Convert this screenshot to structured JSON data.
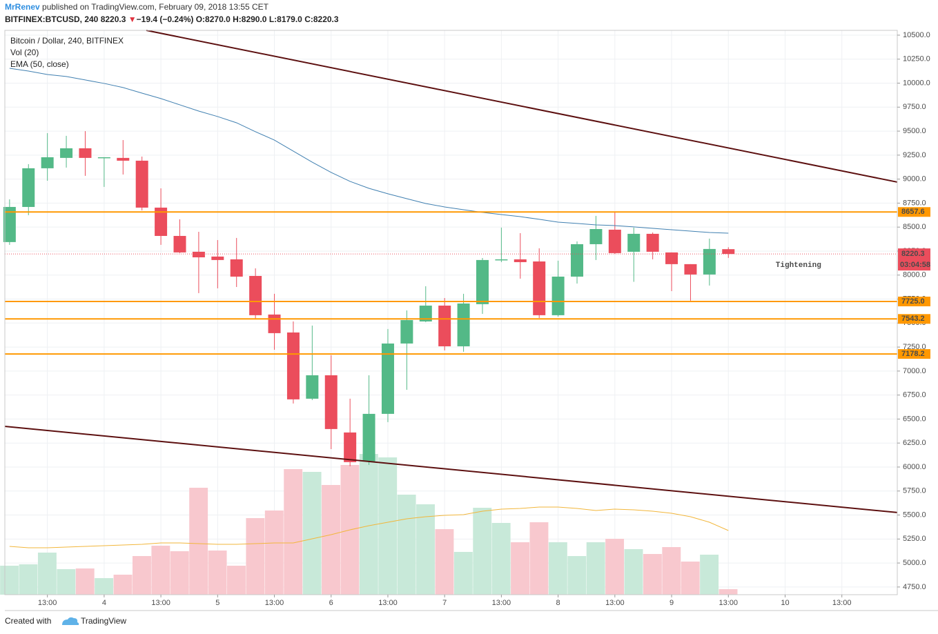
{
  "header": {
    "author": "MrRenev",
    "published": "published on TradingView.com, February 09, 2018 13:55 CET",
    "symbol": "BITFINEX:BTCUSD, 240",
    "price": "8220.3",
    "arrow": "▼",
    "change": "−19.4 (−0.24%)",
    "o": "O:8270.0",
    "h": "H:8290.0",
    "l": "L:8179.0",
    "c": "C:8220.3"
  },
  "footer": {
    "created": "Created with",
    "brand": "TradingView"
  },
  "chart_data": {
    "type": "candlestick",
    "legend": [
      "Bitcoin / Dollar, 240, BITFINEX",
      "Vol (20)",
      "EMA (50, close)"
    ],
    "up_color": "#53b987",
    "down_color": "#eb4d5c",
    "up_volume_color": "#c8e9d9",
    "down_volume_color": "#f8c8ce",
    "ema_color": "#3f7fb0",
    "vol_ma_color": "#f2b63a",
    "level_color": "#ff9800",
    "trend_color": "#5c0f0f",
    "open": [
      8344,
      8710,
      9113,
      9221,
      9321,
      9220,
      9221,
      9192,
      8703,
      8408,
      8243,
      8193,
      8164,
      7991,
      7589,
      7402,
      6712,
      6956,
      6360,
      6058,
      6554,
      7287,
      7517,
      7682,
      7258,
      7697,
      8157,
      8164,
      8142,
      7582,
      7984,
      8322,
      8473,
      8243,
      8430,
      8236,
      8114,
      8006,
      8270
    ],
    "high": [
      8789,
      9156,
      9479,
      9451,
      9500,
      9228,
      9407,
      9235,
      8904,
      8581,
      8451,
      8365,
      8387,
      8070,
      7805,
      7517,
      7474,
      7165,
      6712,
      6956,
      7438,
      7632,
      7884,
      7761,
      7805,
      8178,
      8495,
      8437,
      8279,
      8150,
      8351,
      8617,
      8653,
      8495,
      8444,
      8236,
      8114,
      8380,
      8290
    ],
    "low": [
      8315,
      8624,
      8983,
      9120,
      9034,
      8919,
      9048,
      8674,
      8315,
      8229,
      7812,
      7862,
      7876,
      7538,
      7222,
      6662,
      6698,
      6187,
      6008,
      6022,
      6468,
      6805,
      7510,
      7215,
      7201,
      7596,
      8135,
      7963,
      7553,
      7567,
      7912,
      8157,
      8221,
      7930,
      8164,
      7833,
      7733,
      7891,
      8179
    ],
    "close": [
      8710,
      9113,
      9228,
      9321,
      9221,
      9228,
      9192,
      8703,
      8408,
      8236,
      8185,
      8157,
      7984,
      7582,
      7395,
      6705,
      6956,
      6396,
      6051,
      6554,
      7287,
      7531,
      7682,
      7258,
      7704,
      8157,
      8164,
      8135,
      7582,
      7984,
      8322,
      8480,
      8229,
      8430,
      8243,
      8114,
      8006,
      8272,
      8220.3
    ],
    "volume": [
      42,
      44,
      61,
      37,
      38,
      24,
      29,
      56,
      71,
      63,
      155,
      64,
      42,
      111,
      122,
      182,
      178,
      159,
      188,
      204,
      199,
      145,
      131,
      95,
      62,
      126,
      104,
      76,
      105,
      76,
      56,
      76,
      81,
      66,
      59,
      69,
      48,
      58,
      8
    ],
    "vol_ma": [
      70,
      68,
      68,
      69,
      70,
      71,
      72,
      73,
      75,
      75,
      74,
      73,
      73,
      74,
      75,
      75,
      81,
      87,
      94,
      100,
      105,
      110,
      113,
      115,
      116,
      121,
      124,
      125,
      127,
      127,
      125,
      122,
      124,
      123,
      121,
      118,
      113,
      105,
      93
    ],
    "ema": [
      10155,
      10126,
      10090,
      10069,
      10033,
      9997,
      9954,
      9896,
      9839,
      9774,
      9709,
      9652,
      9587,
      9494,
      9407,
      9292,
      9177,
      9070,
      8976,
      8904,
      8847,
      8796,
      8746,
      8710,
      8681,
      8653,
      8631,
      8609,
      8581,
      8552,
      8538,
      8523,
      8516,
      8502,
      8487,
      8473,
      8458,
      8444,
      8437
    ],
    "levels": [
      {
        "value": 8657.6,
        "label": "8657.6"
      },
      {
        "value": 7725.0,
        "label": "7725.0"
      },
      {
        "value": 7543.2,
        "label": "7543.2"
      },
      {
        "value": 7178.2,
        "label": "7178.2"
      }
    ],
    "trendlines": [
      {
        "x": [
          7.23,
          46.93
        ],
        "y": [
          10550,
          8969
        ]
      },
      {
        "x": [
          -0.26,
          46.93
        ],
        "y": [
          6424,
          5526
        ]
      }
    ],
    "last_price": {
      "value": 8220.3,
      "label": "8220.3"
    },
    "countdown": "03:04:58",
    "annotation": {
      "text": "Tightening",
      "x": 40.5,
      "y": 8106
    },
    "xlim": [
      -0.25,
      46.93
    ],
    "ylim": [
      4670,
      10550
    ],
    "xticks": [
      {
        "value": 2,
        "label": "13:00"
      },
      {
        "value": 5,
        "label": "4"
      },
      {
        "value": 8,
        "label": "13:00"
      },
      {
        "value": 11,
        "label": "5"
      },
      {
        "value": 14,
        "label": "13:00"
      },
      {
        "value": 17,
        "label": "6"
      },
      {
        "value": 20,
        "label": "13:00"
      },
      {
        "value": 23,
        "label": "7"
      },
      {
        "value": 26,
        "label": "13:00"
      },
      {
        "value": 29,
        "label": "8"
      },
      {
        "value": 32,
        "label": "13:00"
      },
      {
        "value": 35,
        "label": "9"
      },
      {
        "value": 38,
        "label": "13:00"
      },
      {
        "value": 41,
        "label": "10"
      },
      {
        "value": 44,
        "label": "13:00"
      }
    ],
    "yticks": [
      {
        "value": 4750,
        "label": "4750.0"
      },
      {
        "value": 5000,
        "label": "5000.0"
      },
      {
        "value": 5250,
        "label": "5250.0"
      },
      {
        "value": 5500,
        "label": "5500.0"
      },
      {
        "value": 5750,
        "label": "5750.0"
      },
      {
        "value": 6000,
        "label": "6000.0"
      },
      {
        "value": 6250,
        "label": "6250.0"
      },
      {
        "value": 6500,
        "label": "6500.0"
      },
      {
        "value": 6750,
        "label": "6750.0"
      },
      {
        "value": 7000,
        "label": "7000.0"
      },
      {
        "value": 7250,
        "label": "7250.0"
      },
      {
        "value": 7500,
        "label": "7500.0"
      },
      {
        "value": 7750,
        "label": "7750.0"
      },
      {
        "value": 8000,
        "label": "8000.0"
      },
      {
        "value": 8250,
        "label": "8250.0"
      },
      {
        "value": 8500,
        "label": "8500.0"
      },
      {
        "value": 8750,
        "label": "8750.0"
      },
      {
        "value": 9000,
        "label": "9000.0"
      },
      {
        "value": 9250,
        "label": "9250.0"
      },
      {
        "value": 9500,
        "label": "9500.0"
      },
      {
        "value": 9750,
        "label": "9750.0"
      },
      {
        "value": 10000,
        "label": "10000.0"
      },
      {
        "value": 10250,
        "label": "10250.0"
      },
      {
        "value": 10500,
        "label": "10500.0"
      }
    ],
    "grid": true
  }
}
